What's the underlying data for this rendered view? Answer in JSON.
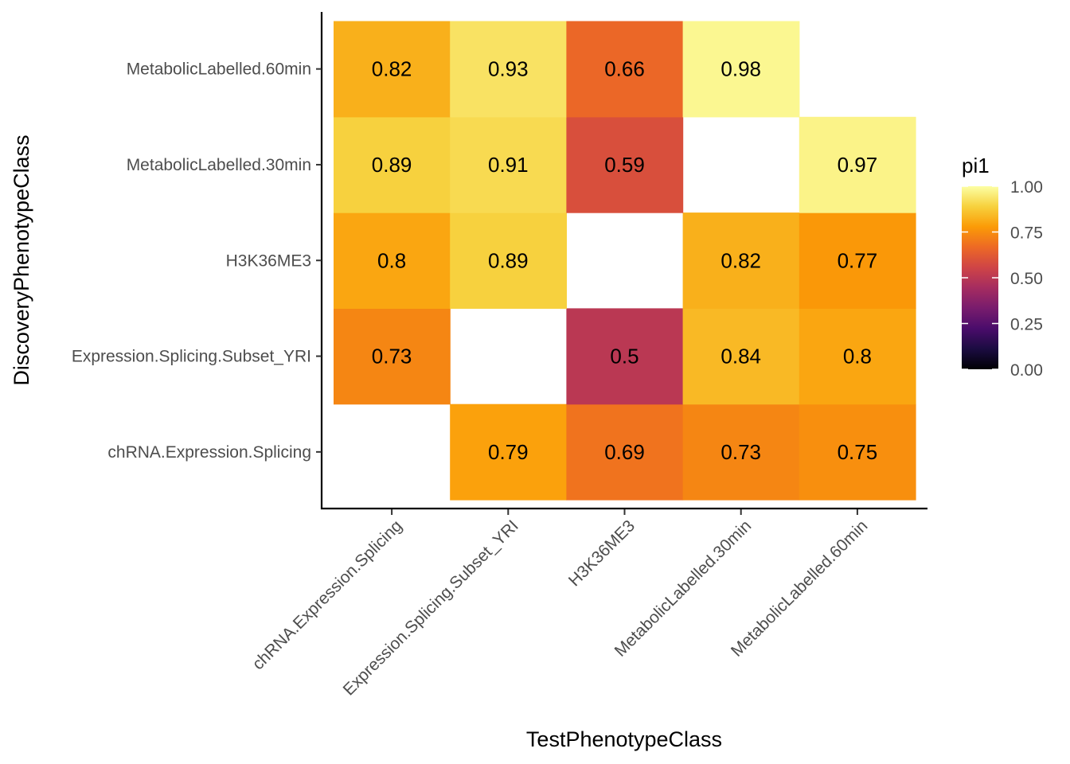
{
  "chart_data": {
    "type": "heatmap",
    "xlabel": "TestPhenotypeClass",
    "ylabel": "DiscoveryPhenotypeClass",
    "x_categories": [
      "chRNA.Expression.Splicing",
      "Expression.Splicing.Subset_YRI",
      "H3K36ME3",
      "MetabolicLabelled.30min",
      "MetabolicLabelled.60min"
    ],
    "y_categories": [
      "chRNA.Expression.Splicing",
      "Expression.Splicing.Subset_YRI",
      "H3K36ME3",
      "MetabolicLabelled.30min",
      "MetabolicLabelled.60min"
    ],
    "cells": [
      {
        "x": "Expression.Splicing.Subset_YRI",
        "y": "chRNA.Expression.Splicing",
        "value": 0.79,
        "label": "0.79"
      },
      {
        "x": "H3K36ME3",
        "y": "chRNA.Expression.Splicing",
        "value": 0.69,
        "label": "0.69"
      },
      {
        "x": "MetabolicLabelled.30min",
        "y": "chRNA.Expression.Splicing",
        "value": 0.73,
        "label": "0.73"
      },
      {
        "x": "MetabolicLabelled.60min",
        "y": "chRNA.Expression.Splicing",
        "value": 0.75,
        "label": "0.75"
      },
      {
        "x": "chRNA.Expression.Splicing",
        "y": "Expression.Splicing.Subset_YRI",
        "value": 0.73,
        "label": "0.73"
      },
      {
        "x": "H3K36ME3",
        "y": "Expression.Splicing.Subset_YRI",
        "value": 0.5,
        "label": "0.5"
      },
      {
        "x": "MetabolicLabelled.30min",
        "y": "Expression.Splicing.Subset_YRI",
        "value": 0.84,
        "label": "0.84"
      },
      {
        "x": "MetabolicLabelled.60min",
        "y": "Expression.Splicing.Subset_YRI",
        "value": 0.8,
        "label": "0.8"
      },
      {
        "x": "chRNA.Expression.Splicing",
        "y": "H3K36ME3",
        "value": 0.8,
        "label": "0.8"
      },
      {
        "x": "Expression.Splicing.Subset_YRI",
        "y": "H3K36ME3",
        "value": 0.89,
        "label": "0.89"
      },
      {
        "x": "MetabolicLabelled.30min",
        "y": "H3K36ME3",
        "value": 0.82,
        "label": "0.82"
      },
      {
        "x": "MetabolicLabelled.60min",
        "y": "H3K36ME3",
        "value": 0.77,
        "label": "0.77"
      },
      {
        "x": "chRNA.Expression.Splicing",
        "y": "MetabolicLabelled.30min",
        "value": 0.89,
        "label": "0.89"
      },
      {
        "x": "Expression.Splicing.Subset_YRI",
        "y": "MetabolicLabelled.30min",
        "value": 0.91,
        "label": "0.91"
      },
      {
        "x": "H3K36ME3",
        "y": "MetabolicLabelled.30min",
        "value": 0.59,
        "label": "0.59"
      },
      {
        "x": "MetabolicLabelled.60min",
        "y": "MetabolicLabelled.30min",
        "value": 0.97,
        "label": "0.97"
      },
      {
        "x": "chRNA.Expression.Splicing",
        "y": "MetabolicLabelled.60min",
        "value": 0.82,
        "label": "0.82"
      },
      {
        "x": "Expression.Splicing.Subset_YRI",
        "y": "MetabolicLabelled.60min",
        "value": 0.93,
        "label": "0.93"
      },
      {
        "x": "H3K36ME3",
        "y": "MetabolicLabelled.60min",
        "value": 0.66,
        "label": "0.66"
      },
      {
        "x": "MetabolicLabelled.30min",
        "y": "MetabolicLabelled.60min",
        "value": 0.98,
        "label": "0.98"
      }
    ],
    "colorscale": {
      "name": "inferno",
      "domain": [
        0,
        1
      ],
      "stops": [
        "#000004",
        "#1b0c41",
        "#4a0c6b",
        "#781c6d",
        "#a52c60",
        "#cf4446",
        "#ed6925",
        "#fb9b06",
        "#f7d13d",
        "#fcffa4"
      ]
    },
    "legend": {
      "title": "pi1",
      "ticks": [
        1.0,
        0.75,
        0.5,
        0.25,
        0.0
      ],
      "tick_labels": [
        "1.00",
        "0.75",
        "0.50",
        "0.25",
        "0.00"
      ],
      "position": "right"
    },
    "grid": false
  }
}
